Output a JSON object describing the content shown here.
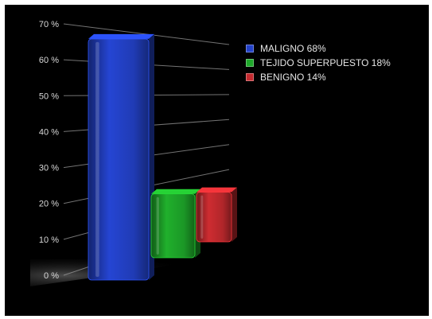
{
  "chart_data": {
    "type": "bar",
    "categories": [
      "MALIGNO 68%",
      "TEJIDO SUPERPUESTO 18%",
      "BENIGNO 14%"
    ],
    "values": [
      68,
      18,
      14
    ],
    "colors": [
      "#2342c9",
      "#1ea82a",
      "#c42a2f"
    ],
    "ylim": [
      0,
      70
    ],
    "yticks": [
      0,
      10,
      20,
      30,
      40,
      50,
      60,
      70
    ],
    "ytick_labels": [
      "0 %",
      "10 %",
      "20 %",
      "30 %",
      "40 %",
      "50 %",
      "60 %",
      "70 %"
    ],
    "legend": [
      {
        "label": "MALIGNO 68%",
        "color": "#2342c9"
      },
      {
        "label": "TEJIDO SUPERPUESTO 18%",
        "color": "#1ea82a"
      },
      {
        "label": "BENIGNO 14%",
        "color": "#c42a2f"
      }
    ],
    "legend_position": "top-right",
    "grid": true,
    "title": "",
    "xlabel": "",
    "ylabel": ""
  }
}
